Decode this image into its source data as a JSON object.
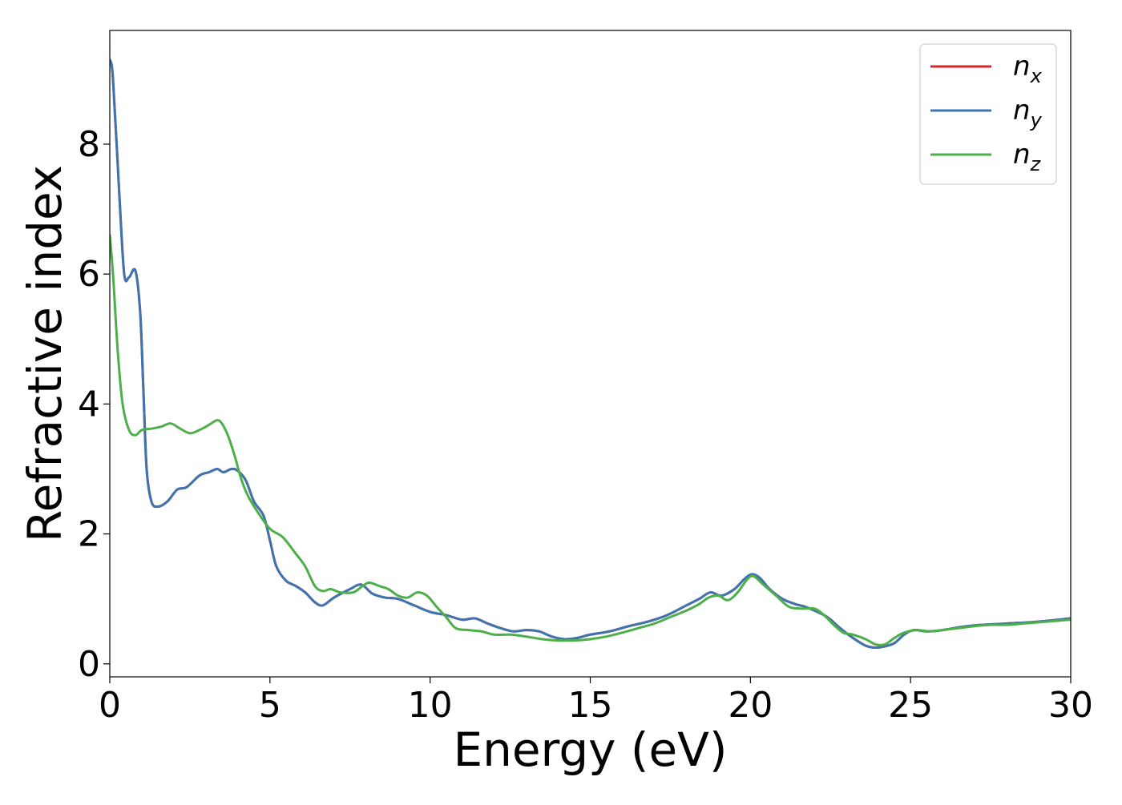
{
  "chart_data": {
    "type": "line",
    "title": "",
    "xlabel": "Energy (eV)",
    "ylabel": "Refractive index",
    "xlim": [
      0,
      30
    ],
    "ylim": [
      -0.2,
      9.75
    ],
    "xticks": [
      0,
      5,
      10,
      15,
      20,
      25,
      30
    ],
    "xtick_labels": [
      "0",
      "5",
      "10",
      "15",
      "20",
      "25",
      "30"
    ],
    "yticks": [
      0,
      2,
      4,
      6,
      8
    ],
    "ytick_labels": [
      "0",
      "2",
      "4",
      "6",
      "8"
    ],
    "grid": false,
    "legend_position": "top-right",
    "colors": {
      "n_x": "#d62728",
      "n_y": "#3e74b0",
      "n_z": "#4daf4a"
    },
    "series": [
      {
        "name": "n_x",
        "legend_base": "n",
        "legend_sub": "x",
        "color": "#d62728",
        "x": [
          0,
          0.1,
          0.3,
          0.45,
          0.6,
          0.8,
          0.95,
          1.05,
          1.15,
          1.3,
          1.5,
          1.8,
          2.1,
          2.4,
          2.8,
          3.1,
          3.35,
          3.55,
          3.8,
          4.0,
          4.25,
          4.5,
          4.8,
          5.0,
          5.2,
          5.5,
          5.8,
          6.1,
          6.4,
          6.65,
          7.0,
          7.5,
          7.85,
          8.2,
          8.6,
          9.0,
          9.5,
          10.0,
          10.5,
          11.0,
          11.4,
          11.8,
          12.2,
          12.6,
          13.0,
          13.4,
          13.8,
          14.2,
          14.6,
          15.0,
          15.6,
          16.2,
          16.8,
          17.4,
          18.0,
          18.4,
          18.75,
          19.1,
          19.5,
          19.8,
          20.05,
          20.3,
          20.6,
          21.0,
          21.4,
          21.7,
          22.0,
          22.4,
          22.8,
          23.2,
          23.6,
          23.9,
          24.2,
          24.5,
          24.8,
          25.1,
          25.5,
          26.0,
          26.6,
          27.2,
          28.0,
          29.0,
          30.0
        ],
        "y": [
          9.3,
          9.0,
          7.2,
          6.0,
          5.95,
          6.05,
          5.4,
          4.2,
          3.0,
          2.5,
          2.42,
          2.5,
          2.68,
          2.72,
          2.9,
          2.95,
          3.0,
          2.95,
          3.0,
          2.97,
          2.82,
          2.5,
          2.28,
          1.9,
          1.5,
          1.28,
          1.2,
          1.1,
          0.95,
          0.9,
          1.02,
          1.15,
          1.22,
          1.08,
          1.02,
          1.0,
          0.9,
          0.8,
          0.75,
          0.68,
          0.7,
          0.62,
          0.55,
          0.5,
          0.52,
          0.5,
          0.42,
          0.38,
          0.4,
          0.45,
          0.5,
          0.58,
          0.65,
          0.75,
          0.9,
          1.0,
          1.1,
          1.05,
          1.15,
          1.3,
          1.38,
          1.32,
          1.15,
          1.0,
          0.92,
          0.88,
          0.82,
          0.72,
          0.55,
          0.4,
          0.28,
          0.25,
          0.27,
          0.32,
          0.45,
          0.52,
          0.5,
          0.52,
          0.57,
          0.6,
          0.62,
          0.65,
          0.7
        ]
      },
      {
        "name": "n_y",
        "legend_base": "n",
        "legend_sub": "y",
        "color": "#3e74b0",
        "x": [
          0,
          0.1,
          0.3,
          0.45,
          0.6,
          0.8,
          0.95,
          1.05,
          1.15,
          1.3,
          1.5,
          1.8,
          2.1,
          2.4,
          2.8,
          3.1,
          3.35,
          3.55,
          3.8,
          4.0,
          4.25,
          4.5,
          4.8,
          5.0,
          5.2,
          5.5,
          5.8,
          6.1,
          6.4,
          6.65,
          7.0,
          7.5,
          7.85,
          8.2,
          8.6,
          9.0,
          9.5,
          10.0,
          10.5,
          11.0,
          11.4,
          11.8,
          12.2,
          12.6,
          13.0,
          13.4,
          13.8,
          14.2,
          14.6,
          15.0,
          15.6,
          16.2,
          16.8,
          17.4,
          18.0,
          18.4,
          18.75,
          19.1,
          19.5,
          19.8,
          20.05,
          20.3,
          20.6,
          21.0,
          21.4,
          21.7,
          22.0,
          22.4,
          22.8,
          23.2,
          23.6,
          23.9,
          24.2,
          24.5,
          24.8,
          25.1,
          25.5,
          26.0,
          26.6,
          27.2,
          28.0,
          29.0,
          30.0
        ],
        "y": [
          9.3,
          9.0,
          7.2,
          6.0,
          5.95,
          6.05,
          5.4,
          4.2,
          3.0,
          2.5,
          2.42,
          2.5,
          2.68,
          2.72,
          2.9,
          2.95,
          3.0,
          2.95,
          3.0,
          2.97,
          2.82,
          2.5,
          2.28,
          1.9,
          1.5,
          1.28,
          1.2,
          1.1,
          0.95,
          0.9,
          1.02,
          1.15,
          1.22,
          1.08,
          1.02,
          1.0,
          0.9,
          0.8,
          0.75,
          0.68,
          0.7,
          0.62,
          0.55,
          0.5,
          0.52,
          0.5,
          0.42,
          0.38,
          0.4,
          0.45,
          0.5,
          0.58,
          0.65,
          0.75,
          0.9,
          1.0,
          1.1,
          1.05,
          1.15,
          1.3,
          1.38,
          1.32,
          1.15,
          1.0,
          0.92,
          0.88,
          0.82,
          0.72,
          0.55,
          0.4,
          0.28,
          0.25,
          0.27,
          0.32,
          0.45,
          0.52,
          0.5,
          0.52,
          0.57,
          0.6,
          0.62,
          0.65,
          0.7
        ]
      },
      {
        "name": "n_z",
        "legend_base": "n",
        "legend_sub": "z",
        "color": "#4daf4a",
        "x": [
          0,
          0.1,
          0.25,
          0.4,
          0.6,
          0.8,
          1.0,
          1.3,
          1.6,
          1.9,
          2.2,
          2.5,
          2.8,
          3.1,
          3.35,
          3.5,
          3.7,
          3.9,
          4.1,
          4.3,
          4.6,
          5.0,
          5.4,
          5.8,
          6.1,
          6.4,
          6.65,
          6.9,
          7.2,
          7.6,
          7.9,
          8.1,
          8.4,
          8.7,
          9.0,
          9.3,
          9.6,
          9.9,
          10.2,
          10.5,
          10.8,
          11.2,
          11.6,
          12.0,
          12.5,
          13.0,
          13.5,
          14.0,
          14.5,
          15.0,
          15.5,
          16.0,
          16.5,
          17.0,
          17.5,
          18.0,
          18.4,
          18.7,
          19.0,
          19.3,
          19.6,
          19.9,
          20.1,
          20.4,
          20.8,
          21.2,
          21.6,
          22.0,
          22.3,
          22.6,
          22.9,
          23.2,
          23.6,
          23.9,
          24.2,
          24.5,
          24.8,
          25.2,
          25.6,
          26.0,
          26.5,
          27.0,
          27.5,
          28.0,
          28.5,
          29.0,
          30.0
        ],
        "y": [
          6.6,
          6.0,
          4.8,
          4.0,
          3.6,
          3.52,
          3.6,
          3.62,
          3.65,
          3.7,
          3.62,
          3.55,
          3.6,
          3.68,
          3.75,
          3.7,
          3.5,
          3.2,
          2.85,
          2.6,
          2.35,
          2.08,
          1.95,
          1.7,
          1.5,
          1.2,
          1.12,
          1.15,
          1.1,
          1.1,
          1.2,
          1.25,
          1.2,
          1.15,
          1.05,
          1.02,
          1.1,
          1.05,
          0.88,
          0.72,
          0.55,
          0.52,
          0.5,
          0.45,
          0.45,
          0.42,
          0.38,
          0.36,
          0.36,
          0.38,
          0.42,
          0.48,
          0.55,
          0.62,
          0.72,
          0.82,
          0.92,
          1.02,
          1.05,
          0.98,
          1.1,
          1.3,
          1.35,
          1.22,
          1.05,
          0.88,
          0.85,
          0.85,
          0.75,
          0.6,
          0.48,
          0.45,
          0.38,
          0.3,
          0.3,
          0.4,
          0.48,
          0.52,
          0.5,
          0.52,
          0.55,
          0.58,
          0.6,
          0.6,
          0.62,
          0.64,
          0.68
        ]
      }
    ]
  }
}
